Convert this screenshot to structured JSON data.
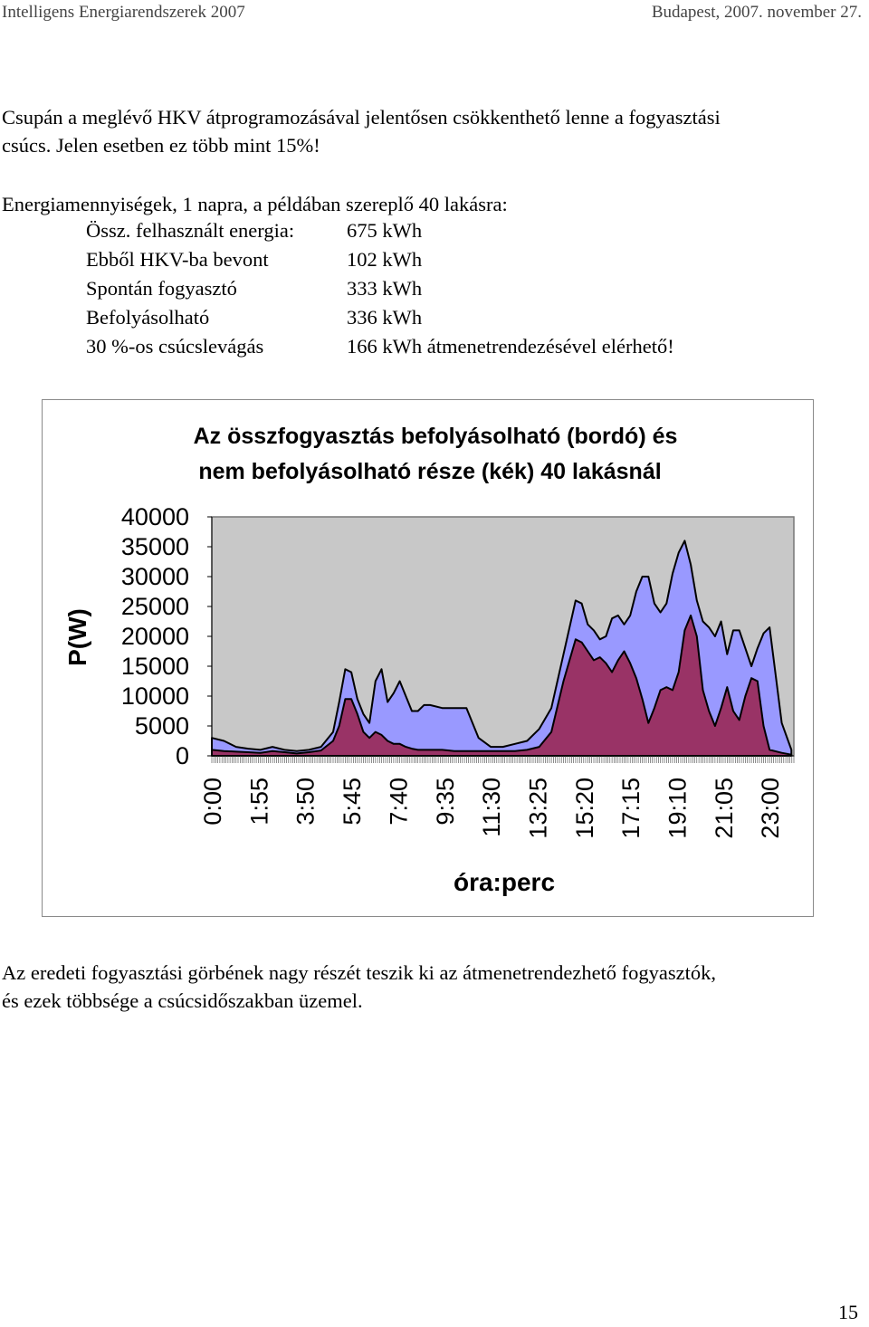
{
  "header": {
    "left": "Intelligens Energiarendszerek 2007",
    "right": "Budapest, 2007. november 27."
  },
  "intro": {
    "line1": "Csupán a meglévő HKV átprogramozásával jelentősen csökkenthető lenne a fogyasztási",
    "line2": "csúcs. Jelen esetben ez több mint 15%!"
  },
  "energy": {
    "heading": "Energiamennyiségek, 1 napra, a példában szereplő 40 lakásra:",
    "rows": [
      {
        "label": "Össz. felhasznált energia:",
        "value": "675 kWh"
      },
      {
        "label": "Ebből HKV-ba bevont",
        "value": "102 kWh"
      },
      {
        "label": "Spontán fogyasztó",
        "value": "333 kWh"
      },
      {
        "label": "Befolyásolható",
        "value": "336 kWh"
      },
      {
        "label": "30 %-os csúcslevágás",
        "value": "166 kWh átmenetrendezésével elérhető!"
      }
    ]
  },
  "chart_data": {
    "type": "area",
    "title_line1": "Az összfogyasztás befolyásolható (bordó) és",
    "title_line2": "nem befolyásolható része (kék) 40 lakásnál",
    "xlabel": "óra:perc",
    "ylabel": "P(W)",
    "ylim": [
      0,
      40000
    ],
    "y_ticks": [
      "40000",
      "35000",
      "30000",
      "25000",
      "20000",
      "15000",
      "10000",
      "5000",
      "0"
    ],
    "x_tick_labels": [
      "0:00",
      "1:55",
      "3:50",
      "5:45",
      "7:40",
      "9:35",
      "11:30",
      "13:25",
      "15:20",
      "17:15",
      "19:10",
      "21:05",
      "23:00"
    ],
    "grid": false,
    "legend": "none",
    "colors": {
      "plot_area": "#c8c8c8",
      "total_fill": "#9999ff",
      "controllable_fill": "#993366",
      "outline": "#000000"
    },
    "x_hours": [
      0,
      0.5,
      1,
      1.5,
      2,
      2.5,
      3,
      3.5,
      4,
      4.5,
      5,
      5.25,
      5.5,
      5.75,
      6,
      6.25,
      6.5,
      6.75,
      7,
      7.25,
      7.5,
      7.75,
      8,
      8.25,
      8.5,
      8.75,
      9,
      9.5,
      10,
      10.5,
      11,
      11.5,
      12,
      12.5,
      13,
      13.5,
      14,
      14.5,
      15,
      15.25,
      15.5,
      15.75,
      16,
      16.25,
      16.5,
      16.75,
      17,
      17.25,
      17.5,
      17.75,
      18,
      18.25,
      18.5,
      18.75,
      19,
      19.25,
      19.5,
      19.75,
      20,
      20.25,
      20.5,
      20.75,
      21,
      21.25,
      21.5,
      21.75,
      22,
      22.25,
      22.5,
      22.75,
      23,
      23.5,
      23.9
    ],
    "series": [
      {
        "name": "",
        "values": [
          3000,
          2500,
          1500,
          1200,
          1000,
          1500,
          1000,
          800,
          1000,
          1500,
          4000,
          9000,
          14500,
          14000,
          9500,
          7000,
          5500,
          12500,
          14500,
          9000,
          10500,
          12500,
          10000,
          7500,
          7500,
          8500,
          8500,
          8000,
          8000,
          8000,
          3000,
          1500,
          1500,
          2000,
          2500,
          4500,
          8000,
          17000,
          26000,
          25500,
          22000,
          21000,
          19500,
          20000,
          23000,
          23500,
          22000,
          23500,
          27500,
          30000,
          30000,
          25500,
          24000,
          25500,
          30500,
          34000,
          36000,
          32000,
          26000,
          22500,
          21500,
          20000,
          22500,
          17000,
          21000,
          21000,
          18000,
          15000,
          18000,
          20500,
          21500,
          5500,
          1000
        ]
      },
      {
        "name": "",
        "values": [
          1000,
          800,
          700,
          600,
          500,
          800,
          600,
          400,
          600,
          900,
          2500,
          5000,
          9500,
          9500,
          7000,
          4000,
          3000,
          4000,
          3500,
          2500,
          2000,
          2000,
          1500,
          1200,
          1000,
          1000,
          1000,
          1000,
          800,
          800,
          800,
          800,
          800,
          800,
          1000,
          1500,
          4000,
          12500,
          19500,
          19000,
          17500,
          16000,
          16500,
          15500,
          14000,
          16000,
          17500,
          15500,
          13000,
          9500,
          5500,
          8000,
          11000,
          11500,
          11000,
          14000,
          21000,
          23500,
          20000,
          11000,
          7500,
          5000,
          8000,
          11500,
          7500,
          6000,
          10000,
          13000,
          12500,
          5000,
          1000,
          500,
          200
        ]
      }
    ]
  },
  "closing": {
    "line1": "Az eredeti fogyasztási görbének nagy részét teszik ki az átmenetrendezhető fogyasztók,",
    "line2": "és ezek többsége a csúcsidőszakban üzemel."
  },
  "page_number": "15"
}
